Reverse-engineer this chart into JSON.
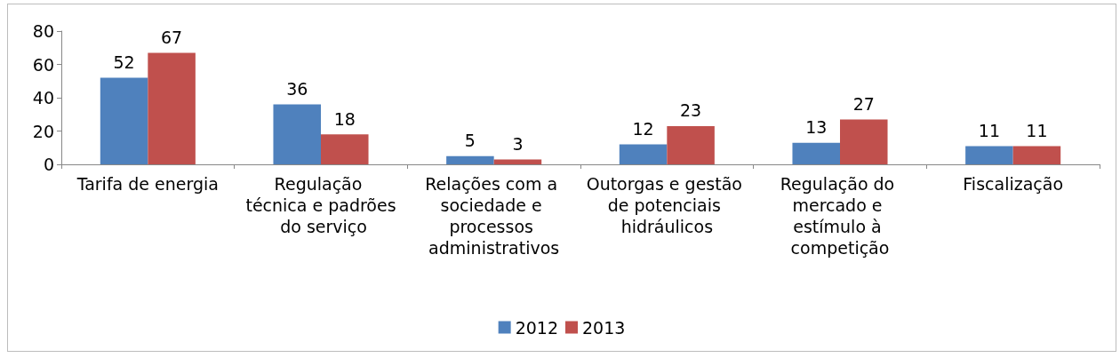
{
  "chart_data": {
    "type": "bar",
    "categories": [
      "Tarifa de energia",
      "Regulação técnica e padrões do serviço",
      "Relações com a sociedade e processos administrativos",
      "Outorgas e gestão de potenciais hidráulicos",
      "Regulação do mercado e estímulo à competição",
      "Fiscalização"
    ],
    "series": [
      {
        "name": "2012",
        "color": "#4f81bd",
        "values": [
          52,
          36,
          5,
          12,
          13,
          11
        ]
      },
      {
        "name": "2013",
        "color": "#c0504d",
        "values": [
          67,
          18,
          3,
          23,
          27,
          11
        ]
      }
    ],
    "ylim": [
      0,
      80
    ],
    "yticks": [
      0,
      20,
      40,
      60,
      80
    ],
    "grid": false,
    "legend": "bottom",
    "data_labels": true
  }
}
